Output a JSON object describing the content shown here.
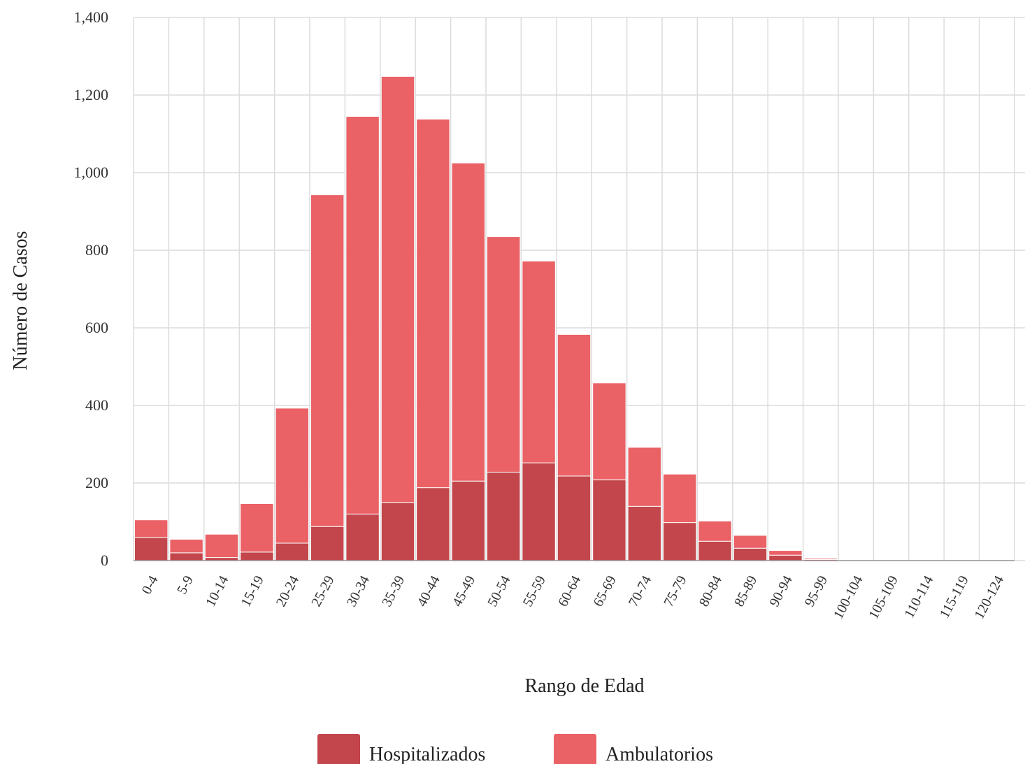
{
  "chart_data": {
    "type": "bar",
    "stacked": true,
    "xlabel": "Rango de Edad",
    "ylabel": "Número de Casos",
    "ylim": [
      0,
      1400
    ],
    "yticks": [
      0,
      200,
      400,
      600,
      800,
      1000,
      1200,
      1400
    ],
    "ytick_labels": [
      "0",
      "200",
      "400",
      "600",
      "800",
      "1,000",
      "1,200",
      "1,400"
    ],
    "grid": true,
    "legend_position": "bottom",
    "categories": [
      "0-4",
      "5-9",
      "10-14",
      "15-19",
      "20-24",
      "25-29",
      "30-34",
      "35-39",
      "40-44",
      "45-49",
      "50-54",
      "55-59",
      "60-64",
      "65-69",
      "70-74",
      "75-79",
      "80-84",
      "85-89",
      "90-94",
      "95-99",
      "100-104",
      "105-109",
      "110-114",
      "115-119",
      "120-124"
    ],
    "series": [
      {
        "name": "Hospitalizados",
        "color": "#c2464b",
        "values": [
          60,
          20,
          8,
          22,
          45,
          88,
          120,
          150,
          188,
          205,
          228,
          252,
          218,
          208,
          140,
          98,
          50,
          32,
          14,
          3,
          0,
          0,
          0,
          0,
          0
        ]
      },
      {
        "name": "Ambulatorios",
        "color": "#ea6166",
        "values": [
          45,
          35,
          60,
          125,
          348,
          855,
          1025,
          1098,
          950,
          820,
          607,
          520,
          365,
          250,
          152,
          125,
          52,
          33,
          12,
          3,
          0,
          0,
          0,
          0,
          0
        ]
      }
    ]
  }
}
